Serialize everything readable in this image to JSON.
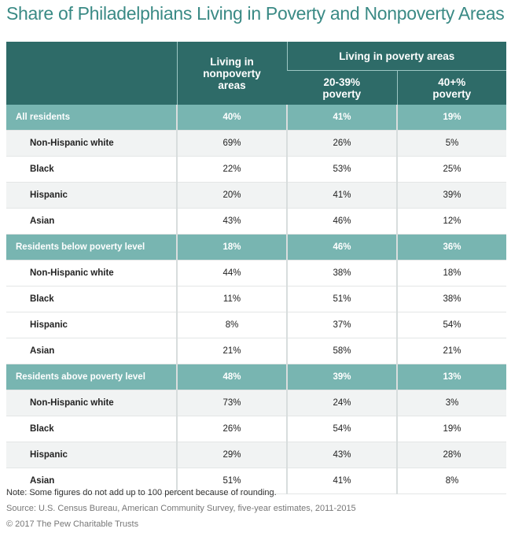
{
  "title": "Share of Philadelphians Living in Poverty and Nonpoverty Areas",
  "table": {
    "header": {
      "nonpoverty": "Living in nonpoverty areas",
      "poverty_group": "Living in poverty areas",
      "poverty_20_39": "20-39% poverty",
      "poverty_40": "40+% poverty"
    },
    "sections": [
      {
        "label": "All residents",
        "values": [
          "40%",
          "41%",
          "19%"
        ],
        "rows": [
          {
            "label": "Non-Hispanic white",
            "values": [
              "69%",
              "26%",
              "5%"
            ]
          },
          {
            "label": "Black",
            "values": [
              "22%",
              "53%",
              "25%"
            ]
          },
          {
            "label": "Hispanic",
            "values": [
              "20%",
              "41%",
              "39%"
            ]
          },
          {
            "label": "Asian",
            "values": [
              "43%",
              "46%",
              "12%"
            ]
          }
        ]
      },
      {
        "label": "Residents below poverty level",
        "values": [
          "18%",
          "46%",
          "36%"
        ],
        "rows": [
          {
            "label": "Non-Hispanic white",
            "values": [
              "44%",
              "38%",
              "18%"
            ]
          },
          {
            "label": "Black",
            "values": [
              "11%",
              "51%",
              "38%"
            ]
          },
          {
            "label": "Hispanic",
            "values": [
              "8%",
              "37%",
              "54%"
            ]
          },
          {
            "label": "Asian",
            "values": [
              "21%",
              "58%",
              "21%"
            ]
          }
        ]
      },
      {
        "label": "Residents above poverty level",
        "values": [
          "48%",
          "39%",
          "13%"
        ],
        "rows": [
          {
            "label": "Non-Hispanic white",
            "values": [
              "73%",
              "24%",
              "3%"
            ]
          },
          {
            "label": "Black",
            "values": [
              "26%",
              "54%",
              "19%"
            ]
          },
          {
            "label": "Hispanic",
            "values": [
              "29%",
              "43%",
              "28%"
            ]
          },
          {
            "label": "Asian",
            "values": [
              "51%",
              "41%",
              "8%"
            ]
          }
        ]
      }
    ]
  },
  "notes": [
    "Note: Some figures do not add up to 100 percent because of rounding.",
    "Source: U.S. Census Bureau, American Community Survey, five-year estimates, 2011-2015",
    "© 2017 The Pew Charitable Trusts"
  ]
}
